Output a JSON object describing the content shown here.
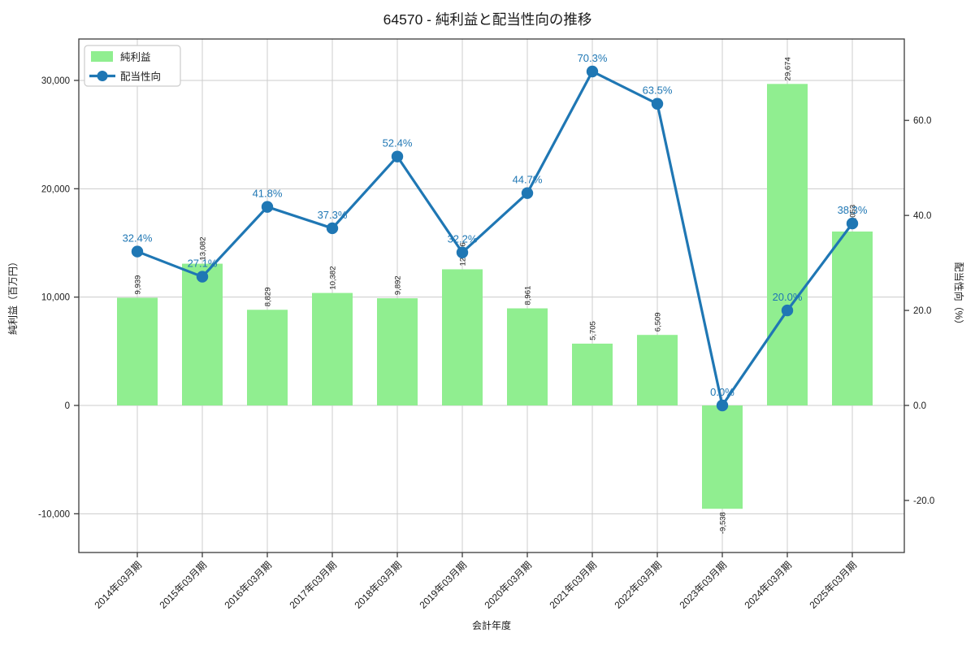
{
  "chart_data": {
    "type": "bar",
    "title": "64570 - 純利益と配当性向の推移",
    "categories": [
      "2014年03月期",
      "2015年03月期",
      "2016年03月期",
      "2017年03月期",
      "2018年03月期",
      "2019年03月期",
      "2020年03月期",
      "2021年03月期",
      "2022年03月期",
      "2023年03月期",
      "2024年03月期",
      "2025年03月期"
    ],
    "series": [
      {
        "name": "純利益",
        "type": "bar",
        "axis": "left",
        "values": [
          9939,
          13082,
          8829,
          10382,
          9892,
          12566,
          8961,
          5705,
          6509,
          -9538,
          29674,
          16053
        ],
        "labels": [
          "9,939",
          "13,082",
          "8,829",
          "10,382",
          "9,892",
          "12,566",
          "8,961",
          "5,705",
          "6,509",
          "-9,538",
          "29,674",
          "16,053"
        ]
      },
      {
        "name": "配当性向",
        "type": "line",
        "axis": "right",
        "values": [
          32.4,
          27.1,
          41.8,
          37.3,
          52.4,
          32.2,
          44.7,
          70.3,
          63.5,
          0.0,
          20.0,
          38.3
        ],
        "labels": [
          "32.4%",
          "27.1%",
          "41.8%",
          "37.3%",
          "52.4%",
          "32.2%",
          "44.7%",
          "70.3%",
          "63.5%",
          "0.0%",
          "20.0%",
          "38.3%"
        ]
      }
    ],
    "xlabel": "会計年度",
    "ylabel_left": "純利益（百万円）",
    "ylabel_right": "配当性向（%）",
    "left_ticks": [
      {
        "v": 30000,
        "t": "30,000"
      },
      {
        "v": 20000,
        "t": "20,000"
      },
      {
        "v": 10000,
        "t": "10,000"
      },
      {
        "v": 0,
        "t": "0"
      },
      {
        "v": -10000,
        "t": "-10,000"
      }
    ],
    "right_ticks": [
      {
        "v": 60,
        "t": "60.0"
      },
      {
        "v": 40,
        "t": "40.0"
      },
      {
        "v": 20,
        "t": "20.0"
      },
      {
        "v": 0,
        "t": "0.0"
      },
      {
        "v": -20,
        "t": "-20.0"
      }
    ],
    "ylim_left": [
      -13573,
      33822
    ],
    "ylim_right": [
      -30.96,
      77.14
    ],
    "grid": true,
    "legend_position": "upper-left"
  },
  "colors": {
    "bar": "#90ee90",
    "line": "#1f77b4",
    "point_label": "#1f77b4",
    "bar_label": "#1a1a1a",
    "grid": "#cccccc",
    "spine": "#3b3b3b",
    "tick_text": "#1a1a1a",
    "legend_border": "#cccccc",
    "background": "#ffffff"
  }
}
